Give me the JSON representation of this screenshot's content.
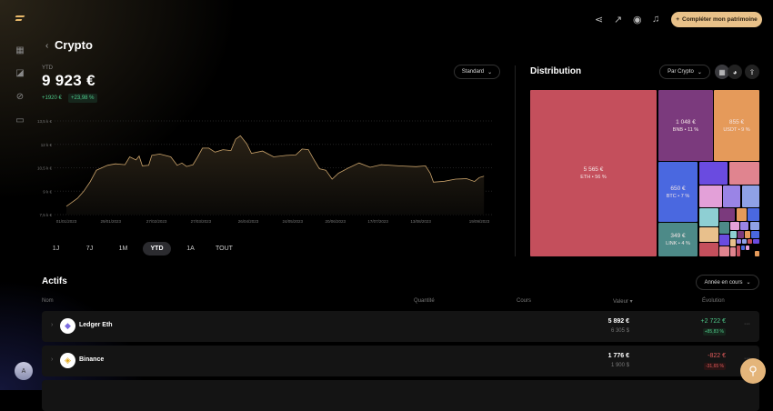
{
  "topbar": {
    "cta_label": "Compléter mon patrimoine",
    "cta_icon": "plus-icon",
    "icons": [
      "share-icon",
      "trend-icon",
      "eye-icon",
      "bell-icon"
    ]
  },
  "sidebar": {
    "items": [
      "dashboard-icon",
      "analytics-icon",
      "compass-icon",
      "chat-icon"
    ],
    "avatar": "A"
  },
  "header": {
    "back": "‹",
    "title": "Crypto",
    "period": "YTD",
    "total": "9 923 €",
    "delta": "+1920 €",
    "delta_pct": "+23,98 %",
    "view_select": "Standard"
  },
  "colors": {
    "accent": "#e8c189",
    "positive": "#4ec98a",
    "negative": "#e05b5b",
    "line": "#c9a26a"
  },
  "chart_data": {
    "type": "area",
    "ylabel": "",
    "xlabel": "",
    "ylim": [
      7.5,
      13.5
    ],
    "yticks": [
      "13,5 k €",
      "12 k €",
      "10,5 k €",
      "9 k €",
      "7,5 k €"
    ],
    "ytick_values": [
      13.5,
      12,
      10.5,
      9,
      7.5
    ],
    "xticks": [
      "01/01/2023",
      "29/01/2023",
      "27/02/2023",
      "27/03/2023",
      "26/04/2023",
      "24/05/2023",
      "20/06/2023",
      "17/07/2023",
      "13/08/2023",
      "19/09/2023"
    ],
    "grid": true,
    "series": [
      {
        "x": [
          "2023-01-01",
          "2023-01-08",
          "2023-01-12",
          "2023-01-16",
          "2023-01-20",
          "2023-01-27",
          "2023-02-01",
          "2023-02-07",
          "2023-02-10",
          "2023-02-14",
          "2023-02-16",
          "2023-02-18",
          "2023-02-22",
          "2023-02-24",
          "2023-03-01",
          "2023-03-08",
          "2023-03-12",
          "2023-03-15",
          "2023-03-18",
          "2023-03-22",
          "2023-03-25",
          "2023-03-28",
          "2023-04-01",
          "2023-04-05",
          "2023-04-10",
          "2023-04-15",
          "2023-04-18",
          "2023-04-21",
          "2023-04-25",
          "2023-04-28",
          "2023-05-05",
          "2023-05-12",
          "2023-05-20",
          "2023-05-26",
          "2023-05-30",
          "2023-06-03",
          "2023-06-06",
          "2023-06-10",
          "2023-06-14",
          "2023-06-18",
          "2023-06-22",
          "2023-06-28",
          "2023-07-05",
          "2023-07-12",
          "2023-07-19",
          "2023-07-30",
          "2023-08-10",
          "2023-08-16",
          "2023-08-19",
          "2023-08-21",
          "2023-08-28",
          "2023-09-04",
          "2023-09-11",
          "2023-09-16",
          "2023-09-19",
          "2023-09-22"
        ],
        "y": [
          8.03,
          8.54,
          9.0,
          9.6,
          10.34,
          10.66,
          10.75,
          10.7,
          11.2,
          11.0,
          11.25,
          10.62,
          10.66,
          11.3,
          11.38,
          11.2,
          10.66,
          10.8,
          10.58,
          10.7,
          11.2,
          11.76,
          11.76,
          11.5,
          11.66,
          11.6,
          12.33,
          12.55,
          12.04,
          11.42,
          11.57,
          11.2,
          11.29,
          11.32,
          11.7,
          11.66,
          11.1,
          10.43,
          10.34,
          9.77,
          10.15,
          10.47,
          10.81,
          10.53,
          10.7,
          10.62,
          10.57,
          10.62,
          10.15,
          9.58,
          9.64,
          9.77,
          9.8,
          9.62,
          9.87,
          9.96
        ]
      }
    ]
  },
  "ranges": [
    {
      "label": "1J"
    },
    {
      "label": "7J"
    },
    {
      "label": "1M"
    },
    {
      "label": "YTD",
      "active": true
    },
    {
      "label": "1A"
    },
    {
      "label": "TOUT"
    }
  ],
  "distribution": {
    "title": "Distribution",
    "group_select": "Par Crypto",
    "tiles": [
      {
        "value": "5 565 €",
        "label": "ETH • 56 %",
        "color": "#c44f5c"
      },
      {
        "value": "1 048 €",
        "label": "BNB • 11 %",
        "color": "#7b3a7d"
      },
      {
        "value": "855 €",
        "label": "USDT • 9 %",
        "color": "#e59a5a"
      },
      {
        "value": "650 €",
        "label": "BTC • 7 %",
        "color": "#4a68e0"
      },
      {
        "value": "349 €",
        "label": "LINK • 4 %",
        "color": "#4d8a88"
      }
    ]
  },
  "assets": {
    "title": "Actifs",
    "period_select": "Année en cours",
    "columns": {
      "name": "Nom",
      "qty": "Quantité",
      "price": "Cours",
      "value": "Valeur ▾",
      "evolution": "Évolution"
    },
    "rows": [
      {
        "name": "Ledger Eth",
        "value": "5 892 €",
        "value_usd": "6 305 $",
        "evo": "+2 722 €",
        "evo_pct": "+85,83 %",
        "positive": true
      },
      {
        "name": "Binance",
        "value": "1 776 €",
        "value_usd": "1 900 $",
        "evo": "-822 €",
        "evo_pct": "-31,65 %",
        "positive": false
      }
    ]
  }
}
